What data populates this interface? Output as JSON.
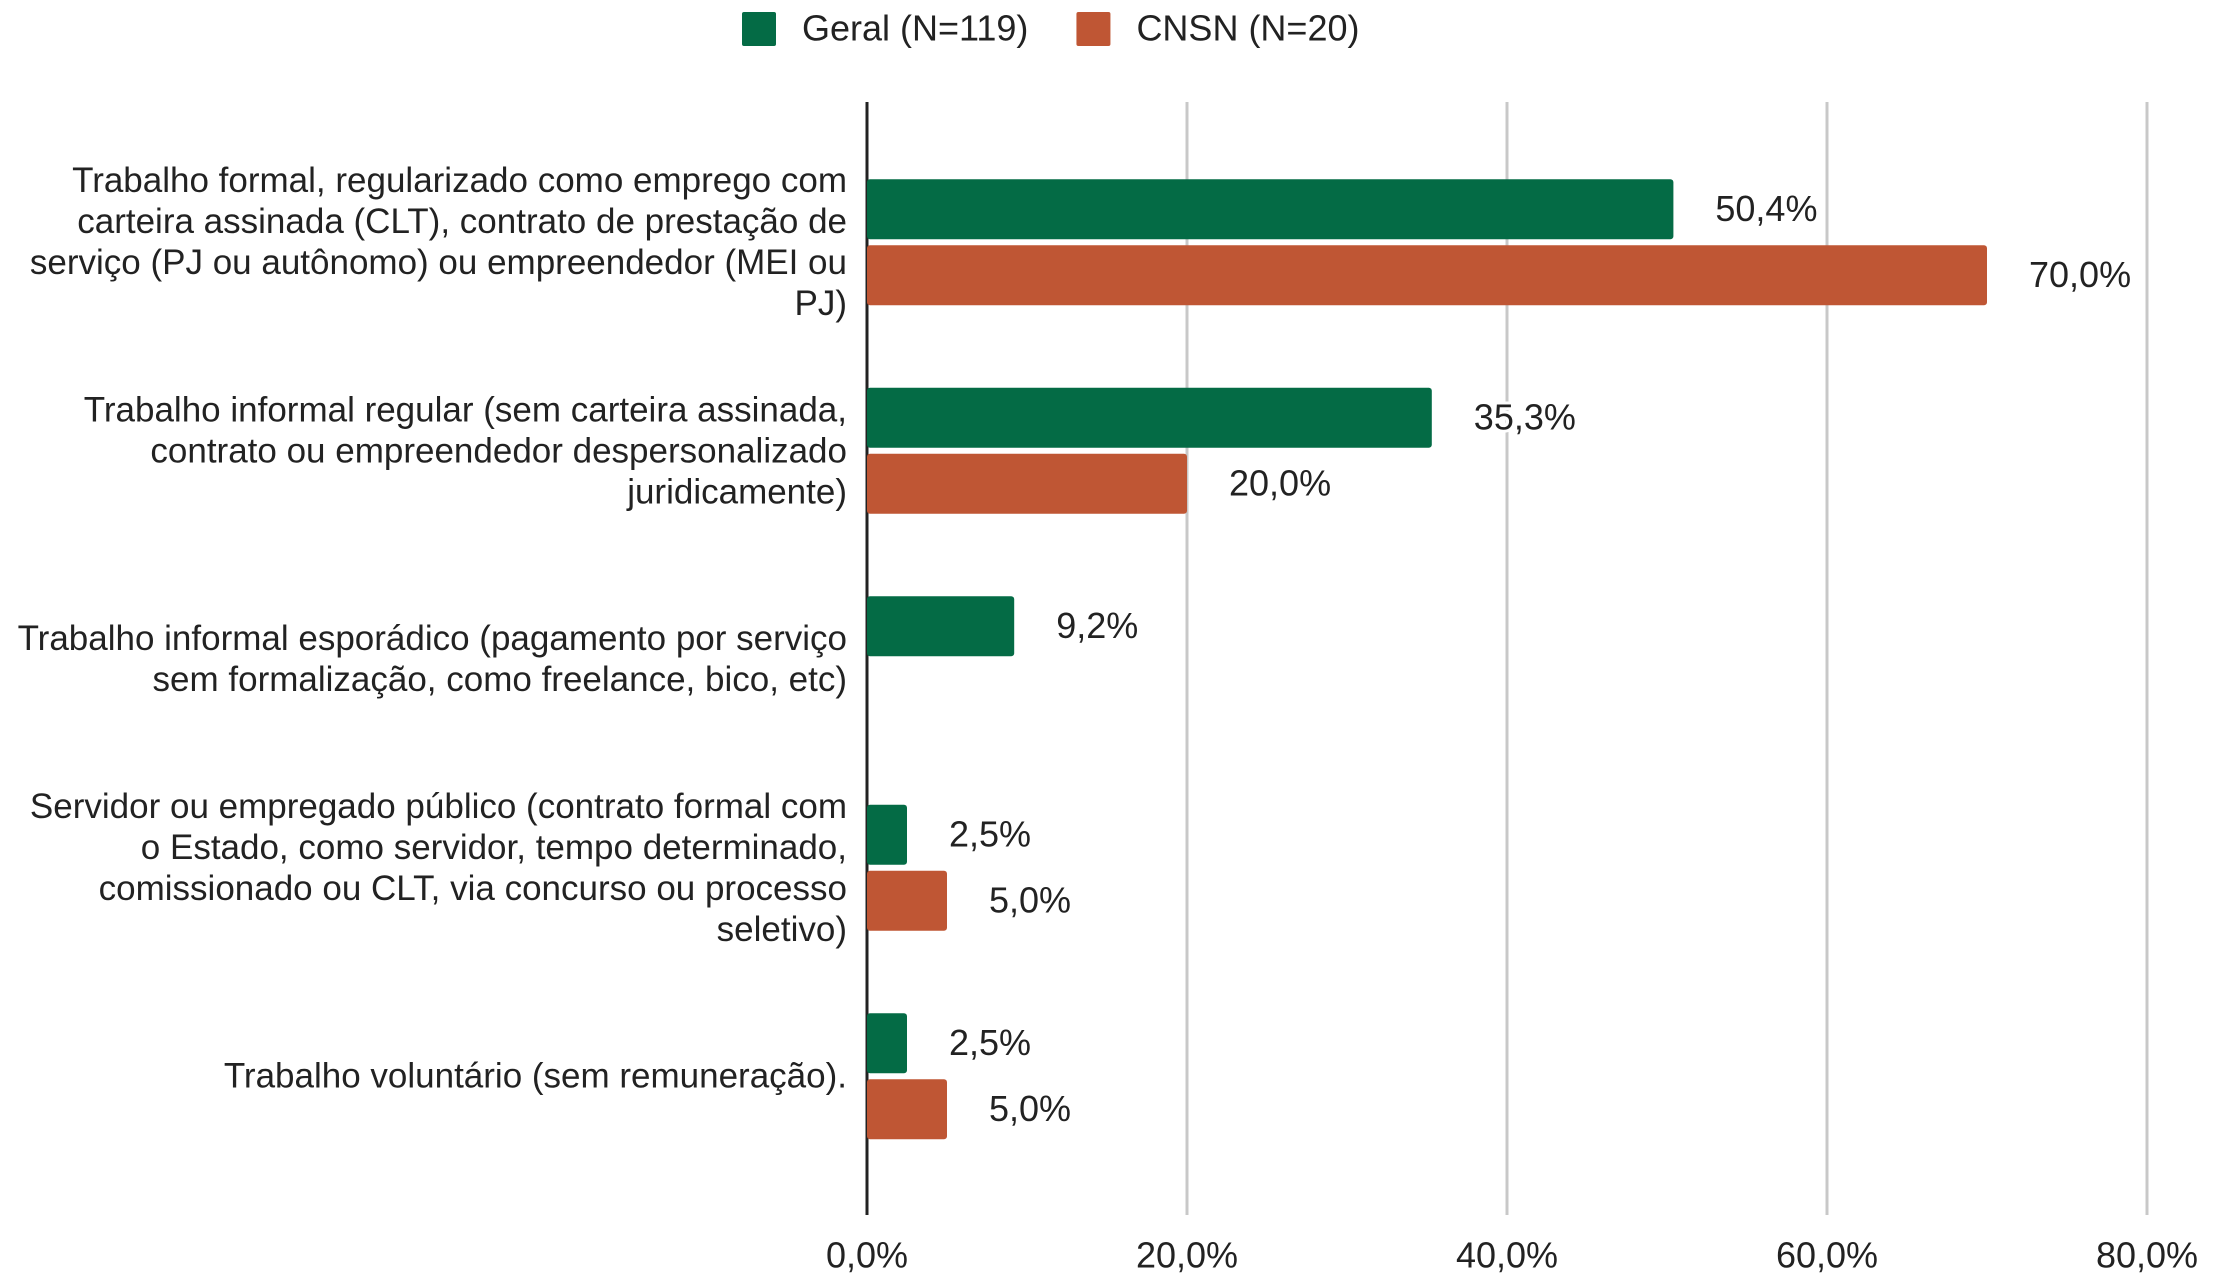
{
  "chart_data": {
    "type": "hbar",
    "categories": [
      "Trabalho formal, regularizado como emprego com carteira assinada (CLT), contrato de prestação de serviço (PJ ou autônomo) ou empreendedor (MEI ou PJ)",
      "Trabalho informal regular (sem carteira assinada, contrato ou empreendedor despersonalizado juridicamente)",
      "Trabalho informal esporádico (pagamento por serviço sem formalização, como freelance, bico, etc)",
      "Servidor ou empregado público (contrato formal com o Estado, como servidor, tempo determinado, comissionado ou CLT, via concurso ou processo seletivo)",
      "Trabalho voluntário (sem remuneração)."
    ],
    "series": [
      {
        "name": "Geral (N=119)",
        "color": "#046b45",
        "values": [
          50.4,
          35.3,
          9.2,
          2.5,
          2.5
        ],
        "value_labels": [
          "50,4%",
          "35,3%",
          "9,2%",
          "2,5%",
          "2,5%"
        ]
      },
      {
        "name": "CNSN (N=20)",
        "color": "#bf5634",
        "values": [
          70.0,
          20.0,
          null,
          5.0,
          5.0
        ],
        "value_labels": [
          "70,0%",
          "20,0%",
          null,
          "5,0%",
          "5,0%"
        ]
      }
    ],
    "xlim": [
      0,
      80
    ],
    "xticks": [
      {
        "value": 0,
        "label": "0,0%"
      },
      {
        "value": 20,
        "label": "20,0%"
      },
      {
        "value": 40,
        "label": "40,0%"
      },
      {
        "value": 60,
        "label": "60,0%"
      },
      {
        "value": 80,
        "label": "80,0%"
      }
    ],
    "grid": true,
    "legend": "top"
  }
}
